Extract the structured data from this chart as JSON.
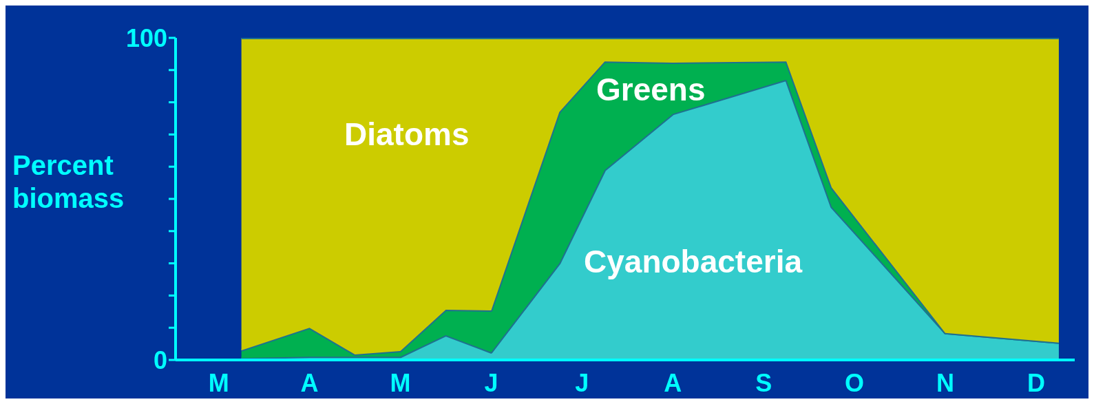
{
  "chart_data": {
    "type": "area",
    "stacked": true,
    "ylabel": "Percent biomass",
    "categories": [
      null,
      null,
      "M",
      null,
      null,
      null,
      "A",
      null,
      null,
      null,
      "M",
      null,
      null,
      null,
      "J",
      null,
      null,
      null,
      "J",
      null,
      null,
      null,
      "A",
      null,
      null,
      null,
      "S",
      null,
      null,
      null,
      "O",
      null,
      null,
      null,
      "N",
      null,
      null,
      null,
      "D",
      null,
      null
    ],
    "ylim": [
      0,
      100
    ],
    "yticks": [
      0,
      {
        "value": 10,
        "label": null
      },
      {
        "value": 20,
        "label": null
      },
      {
        "value": 30,
        "label": null
      },
      {
        "value": 40,
        "label": null
      },
      {
        "value": 50,
        "label": null
      },
      {
        "value": 60,
        "label": null
      },
      {
        "value": 70,
        "label": null
      },
      {
        "value": 80,
        "label": null
      },
      {
        "value": 90,
        "label": null
      },
      100
    ],
    "series": [
      {
        "name": "Cyanobacteria",
        "color": "#33cccc",
        "values": [
          null,
          null,
          null,
          0.6,
          null,
          null,
          1,
          null,
          1,
          null,
          1,
          null,
          7.7,
          null,
          2.4,
          null,
          null,
          30,
          null,
          59,
          null,
          null,
          76.4,
          null,
          null,
          null,
          null,
          87,
          null,
          47.5,
          null,
          null,
          null,
          null,
          8.4,
          null,
          null,
          null,
          null,
          5.4,
          null
        ]
      },
      {
        "name": "Greens",
        "color": "#00b050",
        "values": [
          null,
          null,
          null,
          2.4,
          null,
          null,
          9,
          null,
          0.7,
          null,
          1.8,
          null,
          7.9,
          null,
          13,
          null,
          null,
          47,
          null,
          33.7,
          null,
          null,
          15.9,
          null,
          null,
          null,
          null,
          5.7,
          null,
          6,
          null,
          null,
          null,
          null,
          0,
          null,
          null,
          null,
          null,
          0,
          null
        ]
      },
      {
        "name": "Diatoms",
        "color": "#cccc00",
        "values": [
          null,
          null,
          null,
          97,
          null,
          null,
          90,
          null,
          98.3,
          null,
          97.2,
          null,
          84.4,
          null,
          84.6,
          null,
          null,
          23,
          null,
          7.3,
          null,
          null,
          7.7,
          null,
          null,
          null,
          null,
          7.3,
          null,
          46.5,
          null,
          null,
          null,
          null,
          91.6,
          null,
          null,
          null,
          null,
          94.6,
          null
        ]
      }
    ]
  }
}
